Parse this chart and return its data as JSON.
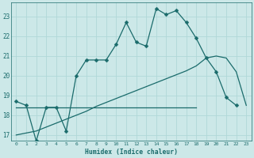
{
  "xlabel": "Humidex (Indice chaleur)",
  "background_color": "#cce8e8",
  "line_color": "#1a6b6b",
  "grid_color": "#b0d8d8",
  "x_data": [
    0,
    1,
    2,
    3,
    4,
    5,
    6,
    7,
    8,
    9,
    10,
    11,
    12,
    13,
    14,
    15,
    16,
    17,
    18,
    19,
    20,
    21,
    22,
    23
  ],
  "y_main": [
    18.7,
    18.5,
    16.7,
    18.4,
    18.4,
    17.2,
    20.0,
    20.8,
    20.8,
    20.8,
    21.6,
    22.7,
    21.7,
    21.5,
    23.4,
    23.1,
    23.3,
    22.7,
    21.9,
    20.9,
    20.2,
    18.9,
    18.5,
    null
  ],
  "y_line1": [
    18.4,
    18.4,
    18.4,
    18.4,
    18.4,
    18.4,
    18.4,
    18.4,
    18.4,
    18.4,
    18.4,
    18.4,
    18.4,
    18.4,
    18.4,
    18.4,
    18.4,
    18.4,
    18.4,
    null,
    null,
    null,
    null,
    null
  ],
  "y_line2": [
    17.0,
    17.1,
    17.2,
    17.4,
    17.6,
    17.8,
    18.0,
    18.2,
    18.45,
    18.65,
    18.85,
    19.05,
    19.25,
    19.45,
    19.65,
    19.85,
    20.05,
    20.25,
    20.5,
    20.9,
    21.0,
    20.9,
    20.2,
    18.5
  ],
  "ylim": [
    16.7,
    23.7
  ],
  "xlim": [
    -0.5,
    23.5
  ],
  "yticks": [
    17,
    18,
    19,
    20,
    21,
    22,
    23
  ],
  "xticks": [
    0,
    1,
    2,
    3,
    4,
    5,
    6,
    7,
    8,
    9,
    10,
    11,
    12,
    13,
    14,
    15,
    16,
    17,
    18,
    19,
    20,
    21,
    22,
    23
  ],
  "font_color": "#1a6b6b",
  "markersize": 2.5,
  "linewidth": 0.9
}
